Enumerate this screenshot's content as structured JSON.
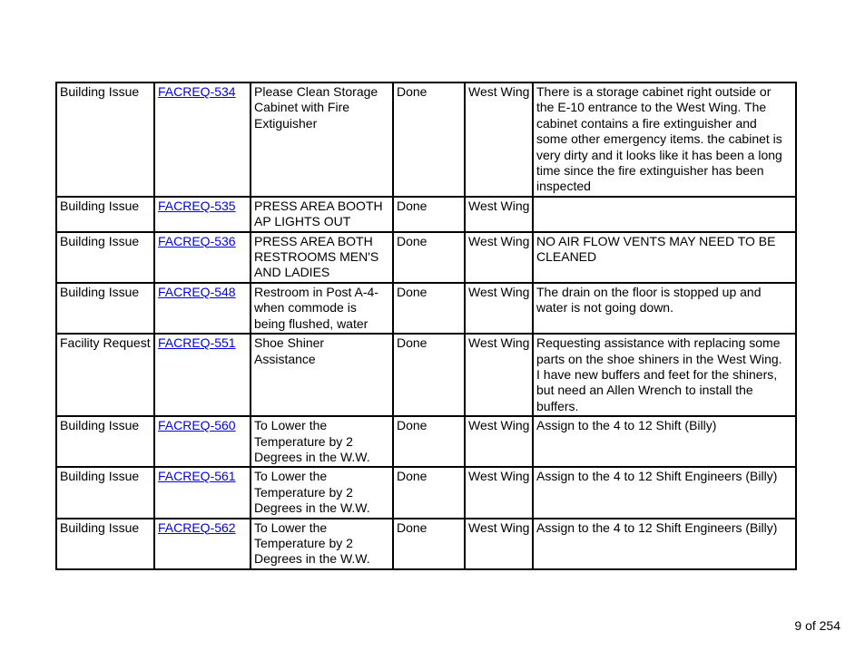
{
  "page": {
    "page_indicator": "9 of 254"
  },
  "table": {
    "link_color": "#0000EE",
    "border_color": "#000000",
    "columns": [
      "type",
      "id",
      "title",
      "status",
      "location",
      "description"
    ],
    "rows": [
      {
        "type": "Building Issue",
        "id": "FACREQ-534",
        "title": "Please Clean Storage\nCabinet with Fire\nExtiguisher",
        "status": "Done",
        "location": "West Wing",
        "description": "There is a storage cabinet right outside or\nthe E-10 entrance to the West Wing. The\ncabinet contains a fire extinguisher and\nsome other emergency items. the cabinet is\nvery dirty and it looks like it has been a long\ntime since the fire extinguisher has been\ninspected"
      },
      {
        "type": "Building Issue",
        "id": "FACREQ-535",
        "title": "PRESS AREA BOOTH\nAP LIGHTS OUT",
        "status": "Done",
        "location": "West Wing",
        "description": ""
      },
      {
        "type": "Building Issue",
        "id": "FACREQ-536",
        "title": "PRESS AREA BOTH\nRESTROOMS MEN'S\nAND LADIES",
        "status": "Done",
        "location": "West Wing",
        "description": "NO AIR FLOW VENTS MAY NEED TO BE\nCLEANED"
      },
      {
        "type": "Building Issue",
        "id": "FACREQ-548",
        "title": "Restroom in Post A-4-\nwhen commode is\nbeing flushed, water",
        "status": "Done",
        "location": "West Wing",
        "description": "The drain on the floor is stopped up and\nwater is not going down."
      },
      {
        "type": "Facility Request",
        "id": "FACREQ-551",
        "title": "Shoe Shiner\nAssistance",
        "status": "Done",
        "location": "West Wing",
        "description": "Requesting assistance with replacing some\nparts on the shoe shiners in the West Wing.\nI have new buffers and feet for the shiners,\nbut need an Allen Wrench to install the\nbuffers."
      },
      {
        "type": "Building Issue",
        "id": "FACREQ-560",
        "title": "To Lower the\nTemperature by 2\nDegrees in the W.W.",
        "status": "Done",
        "location": "West Wing",
        "description": "Assign to the 4 to 12 Shift (Billy)"
      },
      {
        "type": "Building Issue",
        "id": "FACREQ-561",
        "title": "To Lower the\nTemperature by 2\nDegrees in the W.W.",
        "status": "Done",
        "location": "West Wing",
        "description": "Assign to the 4 to 12 Shift Engineers (Billy)"
      },
      {
        "type": "Building Issue",
        "id": "FACREQ-562",
        "title": "To Lower the\nTemperature by 2\nDegrees in the W.W.",
        "status": "Done",
        "location": "West Wing",
        "description": "Assign to the 4 to 12 Shift Engineers (Billy)"
      }
    ]
  }
}
